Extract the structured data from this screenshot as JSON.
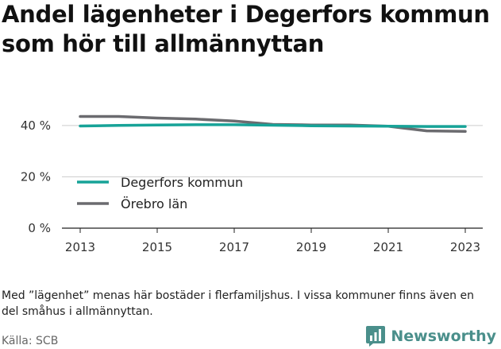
{
  "title": "Andel lägenheter i Degerfors kommun som hör till allmännyttan",
  "note": "Med ”lägenhet” menas här bostäder i flerfamiljshus. I vissa kommuner finns även en del småhus i allmännyttan.",
  "source": "Källa: SCB",
  "brand": {
    "name": "Newsworthy",
    "icon": "newsworthy-chart-logo-icon",
    "color": "#4a8f8b"
  },
  "chart_data": {
    "type": "line",
    "x": [
      2013,
      2014,
      2015,
      2016,
      2017,
      2018,
      2019,
      2020,
      2021,
      2022,
      2023
    ],
    "series": [
      {
        "name": "Degerfors kommun",
        "color": "#17a398",
        "values": [
          39.8,
          40.0,
          40.2,
          40.3,
          40.3,
          40.1,
          39.9,
          39.8,
          39.7,
          39.6,
          39.6
        ]
      },
      {
        "name": "Örebro län",
        "color": "#6b6b6f",
        "values": [
          43.5,
          43.5,
          42.9,
          42.5,
          41.7,
          40.4,
          40.2,
          40.2,
          39.7,
          37.9,
          37.7
        ]
      }
    ],
    "xticks": [
      "2013",
      "2015",
      "2017",
      "2019",
      "2021",
      "2023"
    ],
    "yticks": [
      0,
      20,
      40
    ],
    "ytick_labels": [
      "0 %",
      "20 %",
      "40 %"
    ],
    "xlim": [
      2013,
      2023
    ],
    "ylim": [
      0,
      48
    ],
    "grid": "horizontal",
    "legend": "lower-left"
  }
}
